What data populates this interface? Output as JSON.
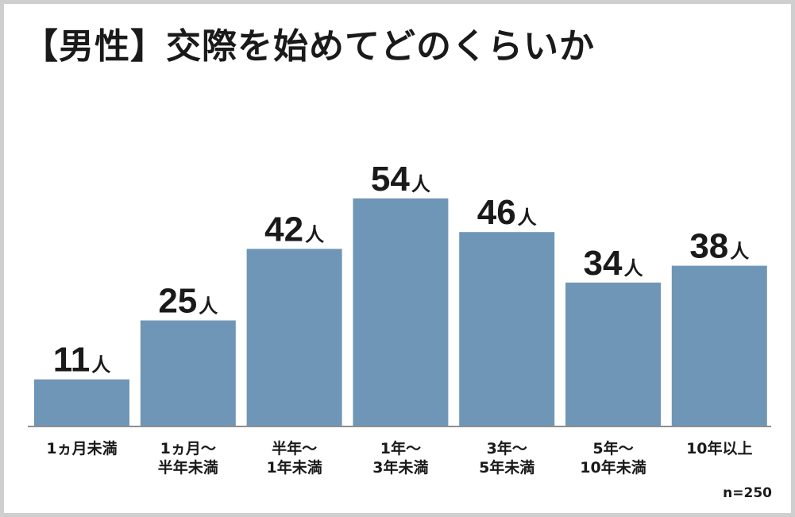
{
  "chart_data": {
    "type": "bar",
    "title": "【男性】交際を始めてどのくらいか",
    "categories": [
      [
        "1ヵ月未満"
      ],
      [
        "1ヵ月〜",
        "半年未満"
      ],
      [
        "半年〜",
        "1年未満"
      ],
      [
        "1年〜",
        "3年未満"
      ],
      [
        "3年〜",
        "5年未満"
      ],
      [
        "5年〜",
        "10年未満"
      ],
      [
        "10年以上"
      ]
    ],
    "values": [
      11,
      25,
      42,
      54,
      46,
      34,
      38
    ],
    "value_unit": "人",
    "note": "n=250",
    "bar_color": "#6f96b6",
    "grid": false,
    "legend": "none"
  }
}
